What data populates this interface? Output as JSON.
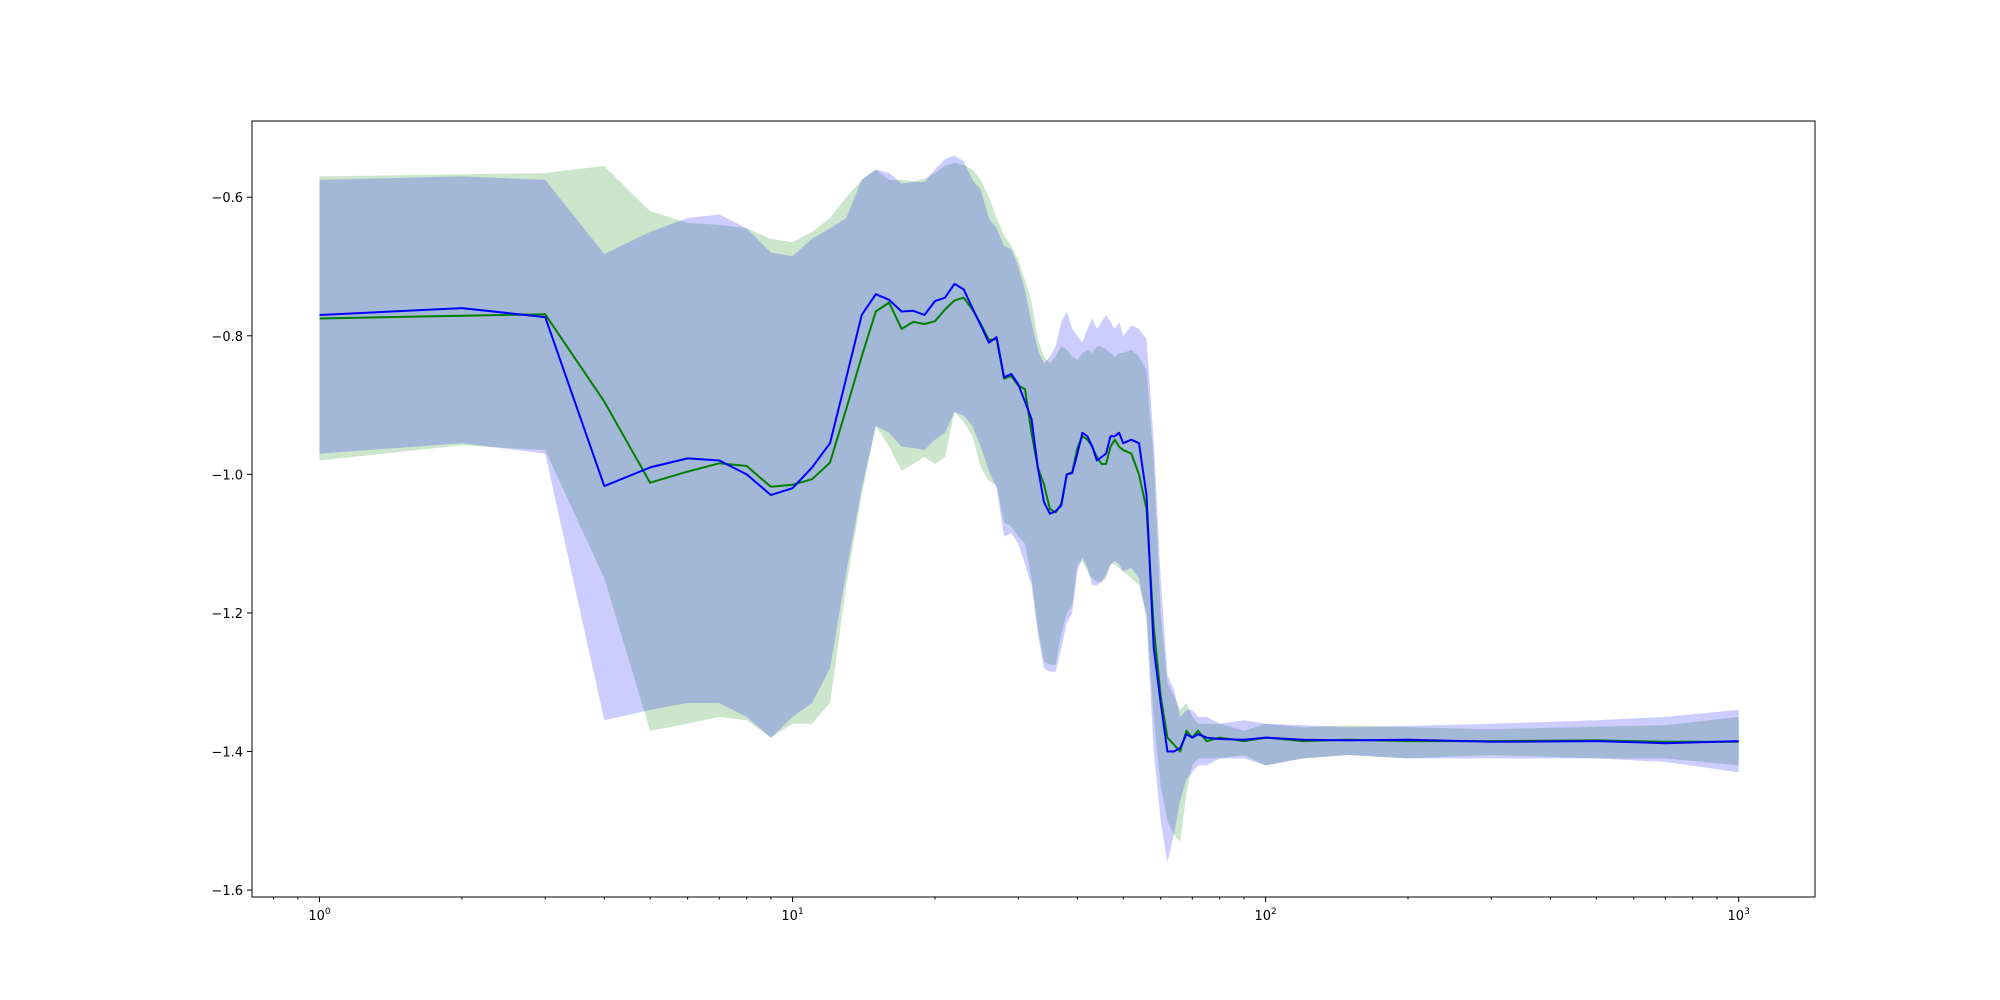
{
  "chart_data": {
    "type": "line",
    "title": "",
    "xlabel": "",
    "ylabel": "",
    "xscale": "log",
    "xlim": [
      0.72,
      1450
    ],
    "ylim": [
      -1.61,
      -0.49
    ],
    "grid": false,
    "legend": "none",
    "x_ticks": [
      {
        "value": 1,
        "base": "10",
        "exp": "0"
      },
      {
        "value": 10,
        "base": "10",
        "exp": "1"
      },
      {
        "value": 100,
        "base": "10",
        "exp": "2"
      },
      {
        "value": 1000,
        "base": "10",
        "exp": "3"
      }
    ],
    "y_ticks": [
      {
        "value": -0.6,
        "label": "−0.6"
      },
      {
        "value": -0.8,
        "label": "−0.8"
      },
      {
        "value": -1.0,
        "label": "−1.0"
      },
      {
        "value": -1.2,
        "label": "−1.2"
      },
      {
        "value": -1.4,
        "label": "−1.4"
      },
      {
        "value": -1.6,
        "label": "−1.6"
      }
    ],
    "series": [
      {
        "color": "#008000",
        "band_color": "#008000",
        "band_opacity": 0.2,
        "x": [
          1,
          2,
          3,
          4,
          5,
          6,
          7,
          8,
          9,
          10,
          11,
          12,
          13,
          14,
          15,
          16,
          17,
          18,
          19,
          20,
          21,
          22,
          23,
          24,
          25,
          26,
          27,
          28,
          29,
          30,
          31,
          32,
          33,
          34,
          35,
          36,
          37,
          38,
          39,
          40,
          41,
          42,
          43,
          44,
          45,
          46,
          47,
          48,
          49,
          50,
          52,
          54,
          56,
          58,
          60,
          62,
          64,
          66,
          68,
          70,
          72,
          75,
          80,
          90,
          100,
          120,
          150,
          200,
          300,
          500,
          700,
          1000
        ],
        "mean": [
          -0.775,
          -0.771,
          -0.769,
          -0.895,
          -1.012,
          -0.996,
          -0.984,
          -0.988,
          -1.018,
          -1.015,
          -1.007,
          -0.983,
          -0.905,
          -0.83,
          -0.765,
          -0.752,
          -0.79,
          -0.78,
          -0.783,
          -0.779,
          -0.762,
          -0.749,
          -0.745,
          -0.762,
          -0.783,
          -0.806,
          -0.805,
          -0.862,
          -0.858,
          -0.872,
          -0.877,
          -0.94,
          -0.99,
          -1.015,
          -1.05,
          -1.055,
          -1.042,
          -1.0,
          -0.997,
          -0.962,
          -0.945,
          -0.95,
          -0.96,
          -0.975,
          -0.985,
          -0.985,
          -0.96,
          -0.95,
          -0.96,
          -0.965,
          -0.97,
          -1.0,
          -1.05,
          -1.22,
          -1.32,
          -1.38,
          -1.39,
          -1.4,
          -1.37,
          -1.38,
          -1.37,
          -1.385,
          -1.38,
          -1.385,
          -1.38,
          -1.385,
          -1.383,
          -1.385,
          -1.385,
          -1.384,
          -1.386,
          -1.386
        ],
        "upper": [
          -0.57,
          -0.567,
          -0.565,
          -0.555,
          -0.62,
          -0.637,
          -0.64,
          -0.645,
          -0.66,
          -0.665,
          -0.65,
          -0.63,
          -0.6,
          -0.575,
          -0.56,
          -0.575,
          -0.575,
          -0.577,
          -0.573,
          -0.565,
          -0.555,
          -0.55,
          -0.553,
          -0.56,
          -0.575,
          -0.6,
          -0.63,
          -0.655,
          -0.67,
          -0.69,
          -0.72,
          -0.75,
          -0.805,
          -0.83,
          -0.84,
          -0.83,
          -0.815,
          -0.82,
          -0.83,
          -0.835,
          -0.825,
          -0.82,
          -0.825,
          -0.815,
          -0.815,
          -0.82,
          -0.825,
          -0.83,
          -0.825,
          -0.825,
          -0.82,
          -0.83,
          -0.85,
          -0.98,
          -1.2,
          -1.3,
          -1.32,
          -1.34,
          -1.33,
          -1.35,
          -1.36,
          -1.36,
          -1.36,
          -1.37,
          -1.36,
          -1.365,
          -1.362,
          -1.365,
          -1.368,
          -1.364,
          -1.362,
          -1.35
        ],
        "lower": [
          -0.98,
          -0.958,
          -0.965,
          -1.15,
          -1.37,
          -1.36,
          -1.35,
          -1.355,
          -1.38,
          -1.36,
          -1.36,
          -1.33,
          -1.16,
          -1.03,
          -0.93,
          -0.96,
          -0.995,
          -0.985,
          -0.975,
          -0.985,
          -0.975,
          -0.91,
          -0.925,
          -0.945,
          -0.99,
          -1.01,
          -1.015,
          -1.07,
          -1.075,
          -1.09,
          -1.1,
          -1.15,
          -1.22,
          -1.27,
          -1.275,
          -1.275,
          -1.23,
          -1.2,
          -1.19,
          -1.13,
          -1.125,
          -1.14,
          -1.15,
          -1.155,
          -1.155,
          -1.15,
          -1.13,
          -1.13,
          -1.135,
          -1.14,
          -1.15,
          -1.16,
          -1.2,
          -1.35,
          -1.45,
          -1.5,
          -1.52,
          -1.53,
          -1.46,
          -1.42,
          -1.41,
          -1.41,
          -1.41,
          -1.405,
          -1.42,
          -1.41,
          -1.405,
          -1.41,
          -1.405,
          -1.41,
          -1.41,
          -1.42
        ]
      },
      {
        "color": "#0000ff",
        "band_color": "#0000ff",
        "band_opacity": 0.2,
        "x": [
          1,
          2,
          3,
          4,
          5,
          6,
          7,
          8,
          9,
          10,
          11,
          12,
          13,
          14,
          15,
          16,
          17,
          18,
          19,
          20,
          21,
          22,
          23,
          24,
          25,
          26,
          27,
          28,
          29,
          30,
          31,
          32,
          33,
          34,
          35,
          36,
          37,
          38,
          39,
          40,
          41,
          42,
          43,
          44,
          45,
          46,
          47,
          48,
          49,
          50,
          52,
          54,
          56,
          58,
          60,
          62,
          64,
          66,
          68,
          70,
          72,
          75,
          80,
          90,
          100,
          120,
          150,
          200,
          300,
          500,
          700,
          1000
        ],
        "mean": [
          -0.77,
          -0.76,
          -0.773,
          -1.017,
          -0.99,
          -0.977,
          -0.98,
          -1.0,
          -1.03,
          -1.02,
          -0.99,
          -0.955,
          -0.86,
          -0.77,
          -0.74,
          -0.748,
          -0.765,
          -0.764,
          -0.77,
          -0.75,
          -0.745,
          -0.725,
          -0.733,
          -0.76,
          -0.785,
          -0.81,
          -0.802,
          -0.86,
          -0.855,
          -0.87,
          -0.895,
          -0.92,
          -0.99,
          -1.04,
          -1.057,
          -1.053,
          -1.045,
          -1.0,
          -0.998,
          -0.97,
          -0.94,
          -0.945,
          -0.96,
          -0.98,
          -0.975,
          -0.97,
          -0.945,
          -0.945,
          -0.94,
          -0.955,
          -0.95,
          -0.955,
          -1.03,
          -1.25,
          -1.33,
          -1.4,
          -1.4,
          -1.395,
          -1.375,
          -1.38,
          -1.375,
          -1.38,
          -1.382,
          -1.383,
          -1.38,
          -1.383,
          -1.384,
          -1.383,
          -1.386,
          -1.385,
          -1.388,
          -1.385
        ],
        "upper": [
          -0.575,
          -0.57,
          -0.575,
          -0.682,
          -0.65,
          -0.63,
          -0.625,
          -0.645,
          -0.68,
          -0.685,
          -0.66,
          -0.645,
          -0.63,
          -0.575,
          -0.56,
          -0.565,
          -0.58,
          -0.578,
          -0.578,
          -0.56,
          -0.545,
          -0.54,
          -0.548,
          -0.575,
          -0.59,
          -0.63,
          -0.645,
          -0.67,
          -0.675,
          -0.7,
          -0.735,
          -0.78,
          -0.82,
          -0.84,
          -0.83,
          -0.815,
          -0.78,
          -0.765,
          -0.79,
          -0.8,
          -0.81,
          -0.79,
          -0.775,
          -0.79,
          -0.78,
          -0.77,
          -0.78,
          -0.79,
          -0.78,
          -0.8,
          -0.785,
          -0.79,
          -0.805,
          -0.95,
          -1.15,
          -1.29,
          -1.31,
          -1.35,
          -1.34,
          -1.34,
          -1.35,
          -1.35,
          -1.36,
          -1.355,
          -1.36,
          -1.362,
          -1.365,
          -1.363,
          -1.36,
          -1.355,
          -1.35,
          -1.34
        ],
        "lower": [
          -0.97,
          -0.955,
          -0.97,
          -1.355,
          -1.34,
          -1.33,
          -1.33,
          -1.35,
          -1.38,
          -1.35,
          -1.33,
          -1.28,
          -1.14,
          -1.02,
          -0.93,
          -0.94,
          -0.96,
          -0.962,
          -0.965,
          -0.95,
          -0.94,
          -0.91,
          -0.915,
          -0.93,
          -0.96,
          -0.995,
          -1.02,
          -1.09,
          -1.085,
          -1.1,
          -1.13,
          -1.16,
          -1.23,
          -1.28,
          -1.285,
          -1.285,
          -1.25,
          -1.215,
          -1.2,
          -1.14,
          -1.12,
          -1.135,
          -1.16,
          -1.16,
          -1.155,
          -1.145,
          -1.13,
          -1.125,
          -1.13,
          -1.14,
          -1.135,
          -1.15,
          -1.21,
          -1.4,
          -1.5,
          -1.56,
          -1.52,
          -1.47,
          -1.44,
          -1.43,
          -1.42,
          -1.42,
          -1.41,
          -1.41,
          -1.42,
          -1.41,
          -1.405,
          -1.41,
          -1.41,
          -1.41,
          -1.415,
          -1.43
        ]
      }
    ]
  }
}
